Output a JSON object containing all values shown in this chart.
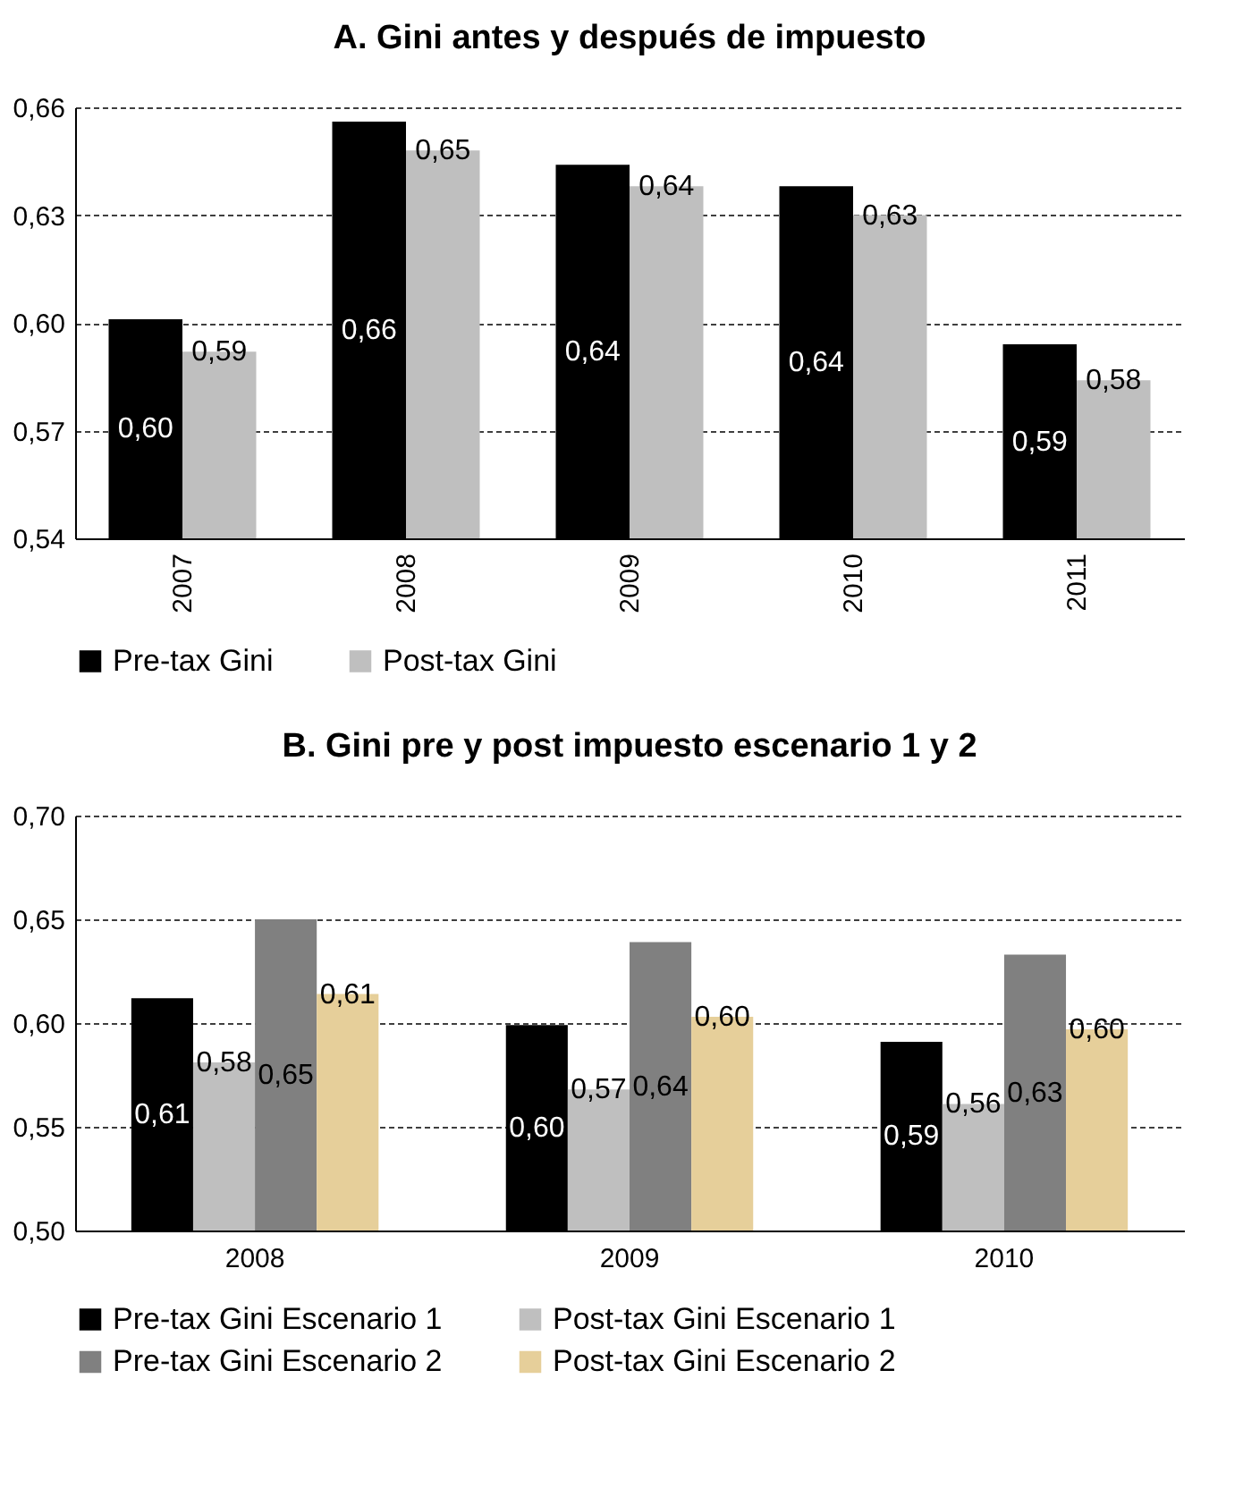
{
  "chart_data": [
    {
      "type": "bar",
      "title": "A. Gini antes y después de impuesto",
      "categories": [
        "2007",
        "2008",
        "2009",
        "2010",
        "2011"
      ],
      "series": [
        {
          "name": "Pre-tax Gini",
          "color": "#000000",
          "values": [
            0.601,
            0.656,
            0.644,
            0.638,
            0.594
          ],
          "value_labels": [
            "0,60",
            "0,66",
            "0,64",
            "0,64",
            "0,59"
          ]
        },
        {
          "name": "Post-tax Gini",
          "color": "#bfbfbf",
          "values": [
            0.592,
            0.648,
            0.638,
            0.63,
            0.584
          ],
          "value_labels": [
            "0,59",
            "0,65",
            "0,64",
            "0,63",
            "0,58"
          ]
        }
      ],
      "ylim": [
        0.54,
        0.66
      ],
      "yticks": [
        {
          "value": 0.54,
          "label": "0,54"
        },
        {
          "value": 0.57,
          "label": "0,57"
        },
        {
          "value": 0.6,
          "label": "0,60"
        },
        {
          "value": 0.63,
          "label": "0,63"
        },
        {
          "value": 0.66,
          "label": "0,66"
        }
      ],
      "grid": "y",
      "legend": "bottom"
    },
    {
      "type": "bar",
      "title": "B. Gini pre y post impuesto escenario 1 y 2",
      "categories": [
        "2008",
        "2009",
        "2010"
      ],
      "series": [
        {
          "name": "Pre-tax Gini Escenario 1",
          "color": "#000000",
          "values": [
            0.612,
            0.599,
            0.591
          ],
          "value_labels": [
            "0,61",
            "0,60",
            "0,59"
          ]
        },
        {
          "name": "Post-tax Gini Escenario 1",
          "color": "#bfbfbf",
          "values": [
            0.581,
            0.568,
            0.561
          ],
          "value_labels": [
            "0,58",
            "0,57",
            "0,56"
          ]
        },
        {
          "name": "Pre-tax Gini Escenario 2",
          "color": "#808080",
          "values": [
            0.65,
            0.639,
            0.633
          ],
          "value_labels": [
            "0,65",
            "0,64",
            "0,63"
          ]
        },
        {
          "name": "Post-tax Gini Escenario 2",
          "color": "#e6cf9a",
          "values": [
            0.614,
            0.603,
            0.597
          ],
          "value_labels": [
            "0,61",
            "0,60",
            "0,60"
          ]
        }
      ],
      "ylim": [
        0.5,
        0.7
      ],
      "yticks": [
        {
          "value": 0.5,
          "label": "0,50"
        },
        {
          "value": 0.55,
          "label": "0,55"
        },
        {
          "value": 0.6,
          "label": "0,60"
        },
        {
          "value": 0.65,
          "label": "0,65"
        },
        {
          "value": 0.7,
          "label": "0,70"
        }
      ],
      "grid": "y",
      "legend": "bottom"
    }
  ]
}
